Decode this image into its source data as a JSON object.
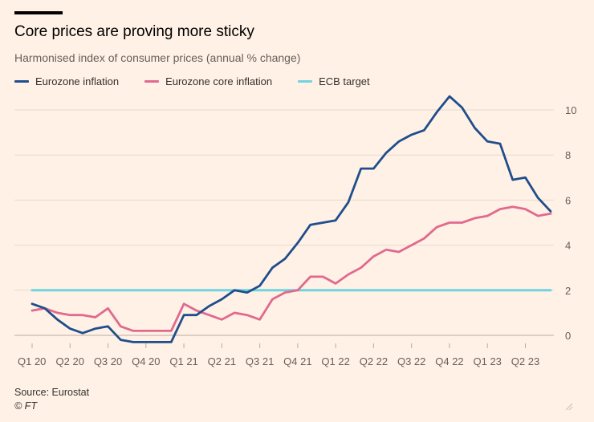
{
  "header": {
    "title": "Core prices are proving more sticky",
    "subtitle": "Harmonised index of consumer prices (annual % change)"
  },
  "footer": {
    "source": "Source: Eurostat",
    "credit": "© FT"
  },
  "colors": {
    "background": "#fff1e5",
    "eurozone_inflation": "#1f4e8c",
    "core_inflation": "#e06a8e",
    "ecb_target": "#6fd3e0",
    "grid": "#e6d9ce"
  },
  "chart_data": {
    "type": "line",
    "title": "Core prices are proving more sticky",
    "subtitle": "Harmonised index of consumer prices (annual % change)",
    "xlabel": "",
    "ylabel": "",
    "ylim": [
      -0.4,
      10.6
    ],
    "yticks": [
      0,
      2,
      4,
      6,
      8,
      10
    ],
    "y_axis_side": "right",
    "grid": "horizontal",
    "legend_position": "top-left",
    "x_tick_labels": [
      "Q1 20",
      "Q2 20",
      "Q3 20",
      "Q4 20",
      "Q1 21",
      "Q2 21",
      "Q3 21",
      "Q4 21",
      "Q1 22",
      "Q2 22",
      "Q3 22",
      "Q4 22",
      "Q1 23",
      "Q2 23"
    ],
    "x": [
      "Jan 20",
      "Feb 20",
      "Mar 20",
      "Apr 20",
      "May 20",
      "Jun 20",
      "Jul 20",
      "Aug 20",
      "Sep 20",
      "Oct 20",
      "Nov 20",
      "Dec 20",
      "Jan 21",
      "Feb 21",
      "Mar 21",
      "Apr 21",
      "May 21",
      "Jun 21",
      "Jul 21",
      "Aug 21",
      "Sep 21",
      "Oct 21",
      "Nov 21",
      "Dec 21",
      "Jan 22",
      "Feb 22",
      "Mar 22",
      "Apr 22",
      "May 22",
      "Jun 22",
      "Jul 22",
      "Aug 22",
      "Sep 22",
      "Oct 22",
      "Nov 22",
      "Dec 22",
      "Jan 23",
      "Feb 23",
      "Mar 23",
      "Apr 23",
      "May 23",
      "Jun 23"
    ],
    "series": [
      {
        "name": "Eurozone inflation",
        "color": "#1f4e8c",
        "values": [
          1.4,
          1.2,
          0.7,
          0.3,
          0.1,
          0.3,
          0.4,
          -0.2,
          -0.3,
          -0.3,
          -0.3,
          -0.3,
          0.9,
          0.9,
          1.3,
          1.6,
          2.0,
          1.9,
          2.2,
          3.0,
          3.4,
          4.1,
          4.9,
          5.0,
          5.1,
          5.9,
          7.4,
          7.4,
          8.1,
          8.6,
          8.9,
          9.1,
          9.9,
          10.6,
          10.1,
          9.2,
          8.6,
          8.5,
          6.9,
          7.0,
          6.1,
          5.5
        ]
      },
      {
        "name": "Eurozone core inflation",
        "color": "#e06a8e",
        "values": [
          1.1,
          1.2,
          1.0,
          0.9,
          0.9,
          0.8,
          1.2,
          0.4,
          0.2,
          0.2,
          0.2,
          0.2,
          1.4,
          1.1,
          0.9,
          0.7,
          1.0,
          0.9,
          0.7,
          1.6,
          1.9,
          2.0,
          2.6,
          2.6,
          2.3,
          2.7,
          3.0,
          3.5,
          3.8,
          3.7,
          4.0,
          4.3,
          4.8,
          5.0,
          5.0,
          5.2,
          5.3,
          5.6,
          5.7,
          5.6,
          5.3,
          5.4
        ]
      },
      {
        "name": "ECB target",
        "color": "#6fd3e0",
        "values": [
          2,
          2,
          2,
          2,
          2,
          2,
          2,
          2,
          2,
          2,
          2,
          2,
          2,
          2,
          2,
          2,
          2,
          2,
          2,
          2,
          2,
          2,
          2,
          2,
          2,
          2,
          2,
          2,
          2,
          2,
          2,
          2,
          2,
          2,
          2,
          2,
          2,
          2,
          2,
          2,
          2,
          2
        ]
      }
    ]
  }
}
